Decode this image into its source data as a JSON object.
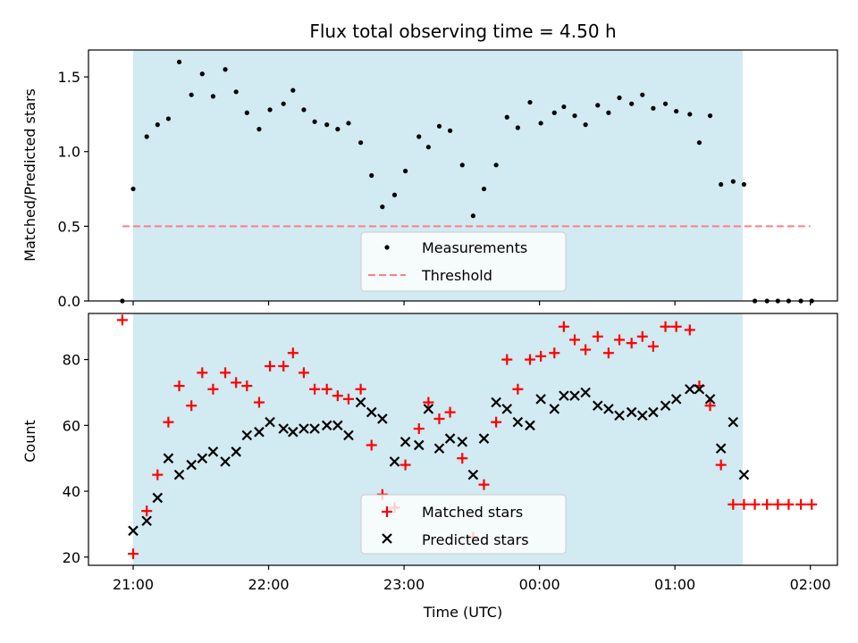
{
  "colors": {
    "shade": "#add8e6",
    "threshold": "#ff7f7f",
    "measurements": "#000000",
    "matched": "#ff0000",
    "predicted": "#000000"
  },
  "chart_data": [
    {
      "type": "scatter",
      "title": "Flux total observing time = 4.50 h",
      "xlabel": "",
      "ylabel": "Matched/Predicted stars",
      "x_unit": "hours since 21:00 UTC",
      "xlim": [
        -0.33,
        5.2
      ],
      "ylim": [
        0,
        1.68
      ],
      "yticks": [
        0.0,
        0.5,
        1.0,
        1.5
      ],
      "ytick_labels": [
        "0.0",
        "0.5",
        "1.0",
        "1.5"
      ],
      "shaded_interval": [
        0.0,
        4.5
      ],
      "threshold": {
        "y": 0.5,
        "x_range": [
          -0.08,
          5.0
        ]
      },
      "legend": {
        "placement": "lower-center",
        "entries": [
          "Measurements",
          "Threshold"
        ]
      },
      "series": [
        {
          "name": "Measurements",
          "x": [
            -0.08,
            0.0,
            0.1,
            0.18,
            0.26,
            0.34,
            0.43,
            0.51,
            0.59,
            0.68,
            0.76,
            0.84,
            0.93,
            1.01,
            1.11,
            1.18,
            1.26,
            1.34,
            1.43,
            1.51,
            1.59,
            1.68,
            1.76,
            1.84,
            1.93,
            2.01,
            2.11,
            2.18,
            2.26,
            2.34,
            2.43,
            2.51,
            2.59,
            2.68,
            2.76,
            2.84,
            2.93,
            3.01,
            3.11,
            3.18,
            3.26,
            3.34,
            3.43,
            3.51,
            3.59,
            3.68,
            3.76,
            3.84,
            3.93,
            4.01,
            4.11,
            4.18,
            4.26,
            4.34,
            4.43,
            4.51,
            4.59,
            4.68,
            4.76,
            4.84,
            4.93,
            5.01
          ],
          "y": [
            0.0,
            0.75,
            1.1,
            1.18,
            1.22,
            1.6,
            1.38,
            1.52,
            1.37,
            1.55,
            1.4,
            1.26,
            1.15,
            1.28,
            1.32,
            1.41,
            1.28,
            1.2,
            1.18,
            1.15,
            1.19,
            1.06,
            0.84,
            0.63,
            0.71,
            0.87,
            1.1,
            1.03,
            1.17,
            1.14,
            0.91,
            0.57,
            0.75,
            0.91,
            1.23,
            1.16,
            1.33,
            1.19,
            1.26,
            1.3,
            1.24,
            1.18,
            1.31,
            1.26,
            1.36,
            1.32,
            1.38,
            1.29,
            1.32,
            1.27,
            1.25,
            1.06,
            1.24,
            0.78,
            0.8,
            0.78,
            0.0,
            0.0,
            0.0,
            0.0,
            0.0,
            0.0
          ]
        },
        {
          "name": "Threshold",
          "x": [
            -0.08,
            5.0
          ],
          "y": [
            0.5,
            0.5
          ]
        }
      ]
    },
    {
      "type": "scatter",
      "title": "",
      "xlabel": "Time (UTC)",
      "ylabel": "Count",
      "x_unit": "hours since 21:00 UTC",
      "xlim": [
        -0.33,
        5.2
      ],
      "ylim": [
        17.5,
        94
      ],
      "yticks": [
        20,
        40,
        60,
        80
      ],
      "ytick_labels": [
        "20",
        "40",
        "60",
        "80"
      ],
      "xticks": [
        0,
        1,
        2,
        3,
        4,
        5
      ],
      "xtick_labels": [
        "21:00",
        "22:00",
        "23:00",
        "00:00",
        "01:00",
        "02:00"
      ],
      "shaded_interval": [
        0.0,
        4.5
      ],
      "legend": {
        "placement": "lower-center",
        "entries": [
          "Matched stars",
          "Predicted stars"
        ]
      },
      "series": [
        {
          "name": "Matched stars",
          "x": [
            -0.08,
            0.0,
            0.1,
            0.18,
            0.26,
            0.34,
            0.43,
            0.51,
            0.59,
            0.68,
            0.76,
            0.84,
            0.93,
            1.01,
            1.11,
            1.18,
            1.26,
            1.34,
            1.43,
            1.51,
            1.59,
            1.68,
            1.76,
            1.84,
            1.93,
            2.01,
            2.11,
            2.18,
            2.26,
            2.34,
            2.43,
            2.51,
            2.59,
            2.68,
            2.76,
            2.84,
            2.93,
            3.01,
            3.11,
            3.18,
            3.26,
            3.34,
            3.43,
            3.51,
            3.59,
            3.68,
            3.76,
            3.84,
            3.93,
            4.01,
            4.11,
            4.18,
            4.26,
            4.34,
            4.43,
            4.51,
            4.59,
            4.68,
            4.76,
            4.84,
            4.93,
            5.01
          ],
          "y": [
            92,
            21,
            34,
            45,
            61,
            72,
            66,
            76,
            71,
            76,
            73,
            72,
            67,
            78,
            78,
            82,
            76,
            71,
            71,
            69,
            68,
            71,
            54,
            39,
            35,
            48,
            59,
            67,
            62,
            64,
            50,
            26,
            42,
            61,
            80,
            71,
            80,
            81,
            82,
            90,
            86,
            83,
            87,
            82,
            86,
            85,
            87,
            84,
            90,
            90,
            89,
            72,
            66,
            48,
            36,
            36,
            36,
            36,
            36,
            36,
            36,
            36
          ]
        },
        {
          "name": "Predicted stars",
          "x": [
            0.0,
            0.1,
            0.18,
            0.26,
            0.34,
            0.43,
            0.51,
            0.59,
            0.68,
            0.76,
            0.84,
            0.93,
            1.01,
            1.11,
            1.18,
            1.26,
            1.34,
            1.43,
            1.51,
            1.59,
            1.68,
            1.76,
            1.84,
            1.93,
            2.01,
            2.11,
            2.18,
            2.26,
            2.34,
            2.43,
            2.51,
            2.59,
            2.68,
            2.76,
            2.84,
            2.93,
            3.01,
            3.11,
            3.18,
            3.26,
            3.34,
            3.43,
            3.51,
            3.59,
            3.68,
            3.76,
            3.84,
            3.93,
            4.01,
            4.11,
            4.18,
            4.26,
            4.34,
            4.43,
            4.51
          ],
          "y": [
            28,
            31,
            38,
            50,
            45,
            48,
            50,
            52,
            49,
            52,
            57,
            58,
            61,
            59,
            58,
            59,
            59,
            60,
            60,
            57,
            67,
            64,
            62,
            49,
            55,
            54,
            65,
            53,
            56,
            55,
            45,
            56,
            67,
            65,
            61,
            60,
            68,
            65,
            69,
            69,
            70,
            66,
            65,
            63,
            64,
            63,
            64,
            66,
            68,
            71,
            71,
            68,
            53,
            61,
            45
          ]
        }
      ]
    }
  ]
}
